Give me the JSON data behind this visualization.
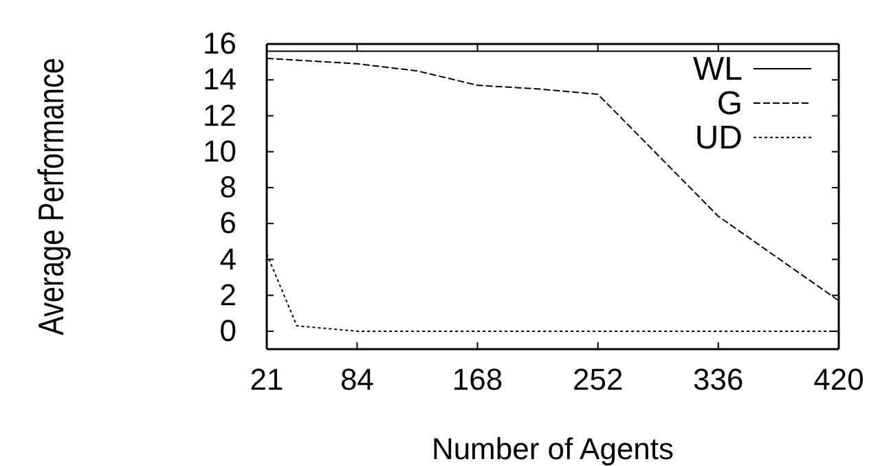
{
  "chart_data": {
    "type": "line",
    "xlabel": "Number of Agents",
    "ylabel": "Average Performance",
    "xlim": [
      21,
      420
    ],
    "ylim": [
      -1,
      16
    ],
    "xticks": [
      21,
      84,
      168,
      252,
      336,
      420
    ],
    "yticks": [
      0,
      2,
      4,
      6,
      8,
      10,
      12,
      14,
      16
    ],
    "grid": false,
    "legend": "top right",
    "marker": "none",
    "series": [
      {
        "name": "WL",
        "color": "#000000",
        "line_style": "solid",
        "x": [
          21,
          420
        ],
        "values": [
          15.6,
          15.6
        ]
      },
      {
        "name": "G",
        "color": "#000000",
        "line_style": "dashed",
        "x": [
          21,
          42,
          84,
          126,
          168,
          210,
          252,
          336,
          420
        ],
        "values": [
          15.2,
          15.1,
          14.9,
          14.5,
          13.7,
          13.5,
          13.2,
          6.4,
          1.7
        ]
      },
      {
        "name": "UD",
        "color": "#000000",
        "line_style": "dotted",
        "x": [
          21,
          42,
          84,
          168,
          252,
          336,
          420
        ],
        "values": [
          4.3,
          0.3,
          0,
          0,
          0,
          0,
          0
        ]
      }
    ]
  }
}
